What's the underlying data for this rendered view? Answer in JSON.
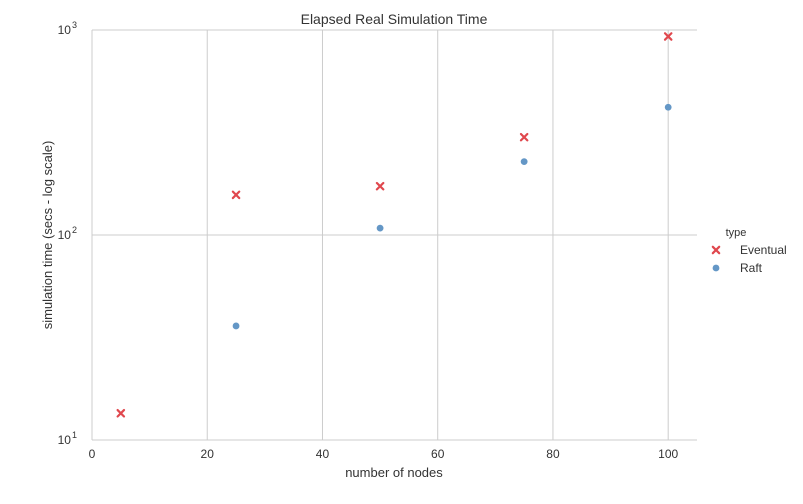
{
  "chart_data": {
    "type": "scatter",
    "title": "Elapsed Real Simulation Time",
    "xlabel": "number of nodes",
    "ylabel": "simulation time (secs - log scale)",
    "xlim": [
      0,
      105
    ],
    "ylim": [
      10,
      1000
    ],
    "yscale": "log",
    "xticks": [
      0,
      20,
      40,
      60,
      80,
      100
    ],
    "yticks": [
      {
        "value": 10,
        "base": "10",
        "exp": "1"
      },
      {
        "value": 100,
        "base": "10",
        "exp": "2"
      },
      {
        "value": 1000,
        "base": "10",
        "exp": "3"
      }
    ],
    "grid": true,
    "legend": {
      "title": "type",
      "placement": "right"
    },
    "series": [
      {
        "name": "Eventual",
        "marker": "x",
        "color": "#e0484e",
        "points": [
          [
            5,
            13.5
          ],
          [
            25,
            157
          ],
          [
            50,
            173
          ],
          [
            75,
            300
          ],
          [
            100,
            930
          ]
        ]
      },
      {
        "name": "Raft",
        "marker": "circle",
        "color": "#6497c6",
        "points": [
          [
            25,
            36
          ],
          [
            50,
            108
          ],
          [
            75,
            228
          ],
          [
            100,
            420
          ]
        ]
      }
    ]
  }
}
